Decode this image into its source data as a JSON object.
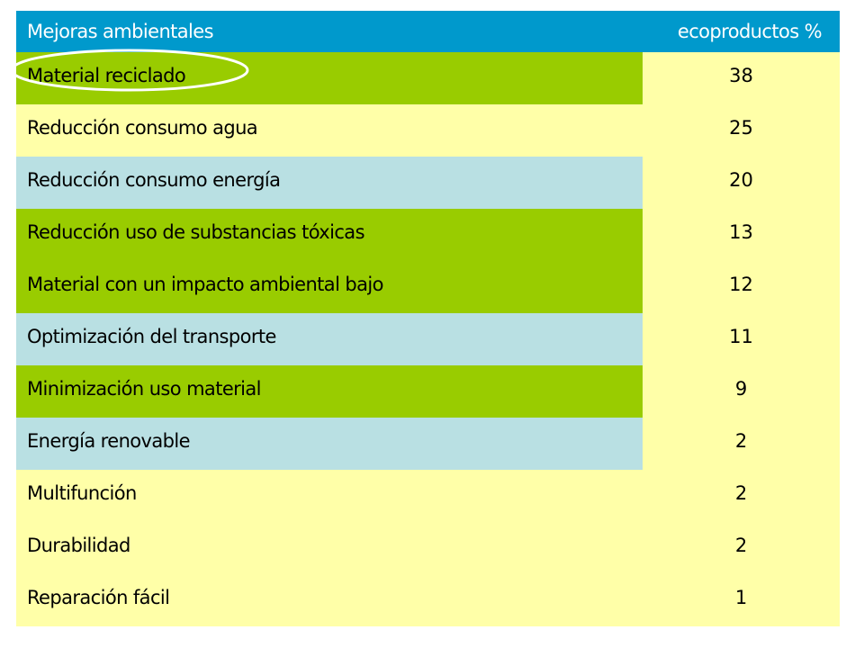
{
  "chart_data": {
    "type": "table",
    "columns": [
      "Mejoras ambientales",
      "ecoproductos %"
    ],
    "rows": [
      {
        "label": "Material reciclado",
        "value": 38,
        "category": "green"
      },
      {
        "label": "Reducción consumo agua",
        "value": 25,
        "category": "yellow"
      },
      {
        "label": "Reducción consumo energía",
        "value": 20,
        "category": "blue"
      },
      {
        "label": "Reducción uso de substancias tóxicas",
        "value": 13,
        "category": "green"
      },
      {
        "label": "Material con un impacto ambiental bajo",
        "value": 12,
        "category": "green"
      },
      {
        "label": "Optimización del transporte",
        "value": 11,
        "category": "blue"
      },
      {
        "label": "Minimización uso material",
        "value": 9,
        "category": "green"
      },
      {
        "label": "Energía renovable",
        "value": 2,
        "category": "blue"
      },
      {
        "label": "Multifunción",
        "value": 2,
        "category": "yellow"
      },
      {
        "label": "Durabilidad",
        "value": 2,
        "category": "yellow"
      },
      {
        "label": "Reparación fácil",
        "value": 1,
        "category": "yellow"
      }
    ],
    "highlighted_row": "Material reciclado"
  },
  "colors": {
    "header": "#0099cc",
    "green": "#99cc00",
    "blue": "#b9e0e3",
    "yellow": "#ffffa8",
    "highlight_stroke": "#ffffff"
  }
}
